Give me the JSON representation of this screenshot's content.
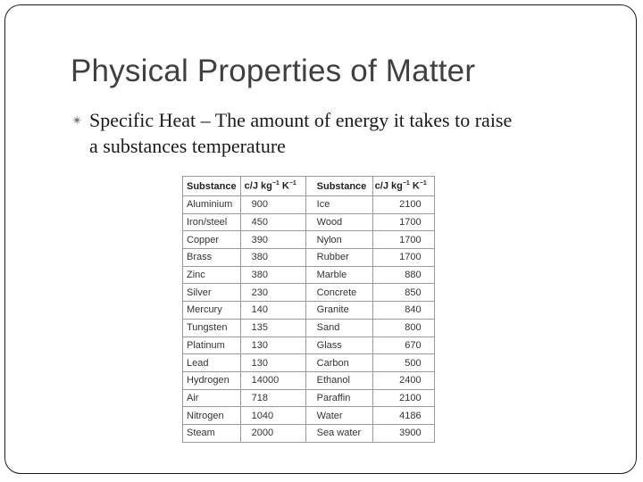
{
  "slide": {
    "title": "Physical Properties of Matter",
    "bullet_icon": "bullet-icon",
    "bullet_line1": "Specific Heat – The amount of energy it takes to raise",
    "bullet_line2": "a substances temperature"
  },
  "table": {
    "headers": {
      "substance1": "Substance",
      "unit1_prefix": "c/J kg",
      "unit1_exp1": "−1",
      "unit1_mid": " K",
      "unit1_exp2": "−1",
      "substance2": "Substance",
      "unit2_prefix": "c/J kg",
      "unit2_exp1": "−1",
      "unit2_mid": " K",
      "unit2_exp2": "−1"
    },
    "rows": [
      {
        "s1": "Aluminium",
        "v1": "900",
        "s2": "Ice",
        "v2": "2100"
      },
      {
        "s1": "Iron/steel",
        "v1": "450",
        "s2": "Wood",
        "v2": "1700"
      },
      {
        "s1": "Copper",
        "v1": "390",
        "s2": "Nylon",
        "v2": "1700"
      },
      {
        "s1": "Brass",
        "v1": "380",
        "s2": "Rubber",
        "v2": "1700"
      },
      {
        "s1": "Zinc",
        "v1": "380",
        "s2": "Marble",
        "v2": "880"
      },
      {
        "s1": "Silver",
        "v1": "230",
        "s2": "Concrete",
        "v2": "850"
      },
      {
        "s1": "Mercury",
        "v1": "140",
        "s2": "Granite",
        "v2": "840"
      },
      {
        "s1": "Tungsten",
        "v1": "135",
        "s2": "Sand",
        "v2": "800"
      },
      {
        "s1": "Platinum",
        "v1": "130",
        "s2": "Glass",
        "v2": "670"
      },
      {
        "s1": "Lead",
        "v1": "130",
        "s2": "Carbon",
        "v2": "500"
      },
      {
        "s1": "Hydrogen",
        "v1": "14000",
        "s2": "Ethanol",
        "v2": "2400"
      },
      {
        "s1": "Air",
        "v1": "718",
        "s2": "Paraffin",
        "v2": "2100"
      },
      {
        "s1": "Nitrogen",
        "v1": "1040",
        "s2": "Water",
        "v2": "4186"
      },
      {
        "s1": "Steam",
        "v1": "2000",
        "s2": "Sea water",
        "v2": "3900"
      }
    ]
  }
}
